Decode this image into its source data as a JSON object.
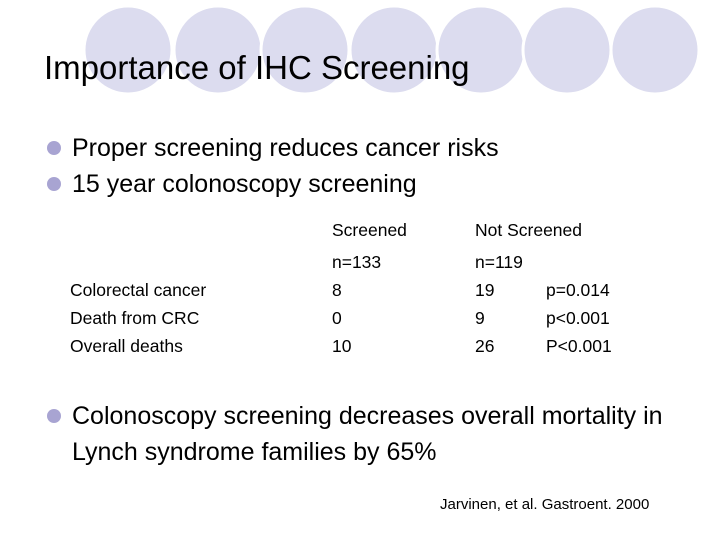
{
  "title": "Importance of IHC Screening",
  "bullets": [
    "Proper screening reduces cancer risks",
    "15 year colonoscopy screening"
  ],
  "table": {
    "headers": [
      "Screened",
      "Not Screened"
    ],
    "n_values": [
      "n=133",
      "n=119"
    ],
    "rows": [
      {
        "label": "Colorectal cancer",
        "screened": "8",
        "not_screened": "19",
        "p": "p=0.014"
      },
      {
        "label": "Death from CRC",
        "screened": "0",
        "not_screened": "9",
        "p": "p<0.001"
      },
      {
        "label": "Overall deaths",
        "screened": "10",
        "not_screened": "26",
        "p": "P<0.001"
      }
    ]
  },
  "bullet3": "Colonoscopy screening decreases overall mortality in Lynch syndrome families by 65%",
  "citation": "Jarvinen, et al. Gastroent. 2000",
  "colors": {
    "circle_fill": "#dcdcef",
    "circle_stroke": "#ffffff",
    "bullet": "#a8a4d2"
  }
}
